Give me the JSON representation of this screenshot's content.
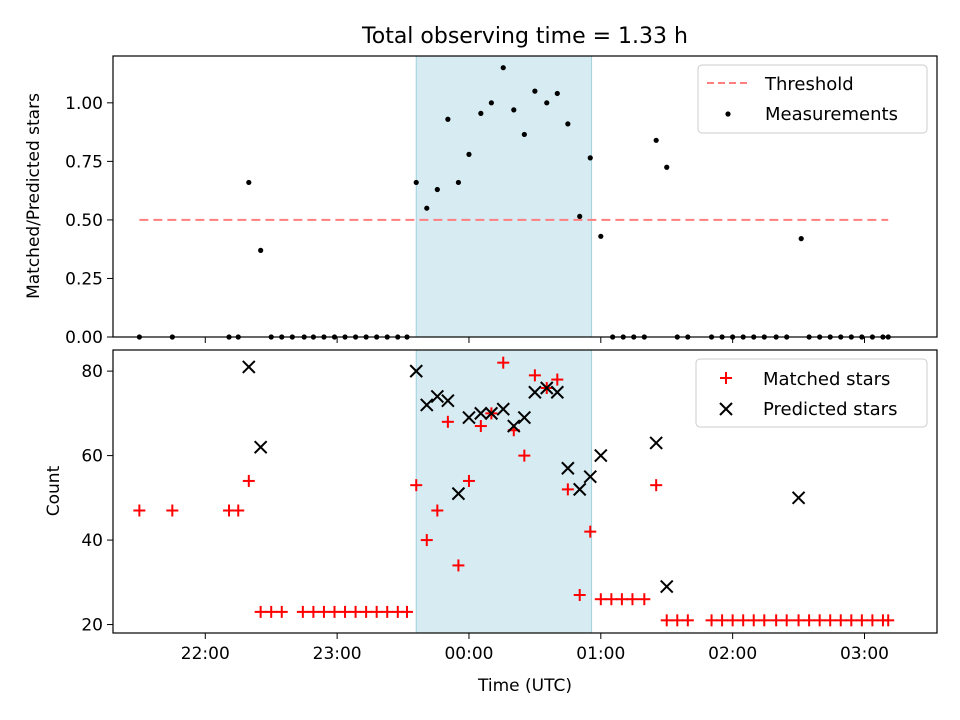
{
  "title": "Total observing time = 1.33 h",
  "chart_data": [
    {
      "type": "scatter",
      "panel": "top",
      "ylabel": "Matched/Predicted stars",
      "xlabel": "",
      "xlim": [
        21.3,
        27.55
      ],
      "ylim": [
        0,
        1.2
      ],
      "yticks": [
        0.0,
        0.25,
        0.5,
        0.75,
        1.0
      ],
      "ytick_labels": [
        "0.00",
        "0.25",
        "0.50",
        "0.75",
        "1.00"
      ],
      "highlight_span": [
        23.6,
        24.93
      ],
      "highlight_color": "#add8e6",
      "legend_position": "upper-right",
      "threshold": {
        "name": "Threshold",
        "value": 0.5,
        "x_range": [
          21.5,
          27.18
        ],
        "color": "#ff7f7f",
        "style": "dashed"
      },
      "series": [
        {
          "name": "Measurements",
          "color": "#000000",
          "marker": "dot",
          "x": [
            21.5,
            21.75,
            22.18,
            22.25,
            22.33,
            22.42,
            22.5,
            22.58,
            22.66,
            22.75,
            22.82,
            22.9,
            22.98,
            23.06,
            23.14,
            23.22,
            23.3,
            23.38,
            23.46,
            23.53,
            23.6,
            23.68,
            23.76,
            23.84,
            23.92,
            24.0,
            24.09,
            24.17,
            24.26,
            24.34,
            24.42,
            24.5,
            24.59,
            24.67,
            24.75,
            24.84,
            24.92,
            25.0,
            25.09,
            25.17,
            25.25,
            25.33,
            25.42,
            25.5,
            25.58,
            25.66,
            25.84,
            25.92,
            26.0,
            26.08,
            26.16,
            26.24,
            26.33,
            26.41,
            26.52,
            26.58,
            26.66,
            26.74,
            26.82,
            26.9,
            26.98,
            27.06,
            27.14,
            27.18
          ],
          "y": [
            0,
            0,
            0,
            0,
            0.66,
            0.37,
            0,
            0,
            0,
            0,
            0,
            0,
            0,
            0,
            0,
            0,
            0,
            0,
            0,
            0,
            0.66,
            0.55,
            0.63,
            0.93,
            0.66,
            0.78,
            0.955,
            1.0,
            1.15,
            0.97,
            0.865,
            1.05,
            1.0,
            1.04,
            0.91,
            0.515,
            0.765,
            0.43,
            0,
            0,
            0,
            0,
            0.84,
            0.725,
            0,
            0,
            0,
            0,
            0,
            0,
            0,
            0,
            0,
            0,
            0.42,
            0,
            0,
            0,
            0,
            0,
            0,
            0,
            0,
            0
          ]
        }
      ]
    },
    {
      "type": "scatter",
      "panel": "bottom",
      "xlabel": "Time (UTC)",
      "ylabel": "Count",
      "xlim": [
        21.3,
        27.55
      ],
      "ylim": [
        18,
        85
      ],
      "yticks": [
        20,
        40,
        60,
        80
      ],
      "ytick_labels": [
        "20",
        "40",
        "60",
        "80"
      ],
      "xticks": [
        22,
        23,
        24,
        25,
        26,
        27
      ],
      "xtick_labels": [
        "22:00",
        "23:00",
        "00:00",
        "01:00",
        "02:00",
        "03:00"
      ],
      "highlight_span": [
        23.6,
        24.93
      ],
      "highlight_color": "#add8e6",
      "legend_position": "upper-right",
      "series": [
        {
          "name": "Matched stars",
          "color": "#ff0000",
          "marker": "plus",
          "x": [
            21.5,
            21.75,
            22.18,
            22.25,
            22.33,
            22.42,
            22.5,
            22.58,
            22.74,
            22.82,
            22.9,
            22.98,
            23.06,
            23.14,
            23.22,
            23.3,
            23.38,
            23.46,
            23.53,
            23.6,
            23.68,
            23.76,
            23.84,
            23.92,
            24.0,
            24.09,
            24.17,
            24.26,
            24.34,
            24.42,
            24.5,
            24.59,
            24.67,
            24.75,
            24.84,
            24.92,
            25.0,
            25.08,
            25.16,
            25.24,
            25.33,
            25.42,
            25.5,
            25.58,
            25.66,
            25.84,
            25.92,
            26.0,
            26.08,
            26.16,
            26.24,
            26.33,
            26.41,
            26.5,
            26.58,
            26.66,
            26.74,
            26.82,
            26.9,
            26.98,
            27.06,
            27.14,
            27.18
          ],
          "y": [
            47,
            47,
            47,
            47,
            54,
            23,
            23,
            23,
            23,
            23,
            23,
            23,
            23,
            23,
            23,
            23,
            23,
            23,
            23,
            53,
            40,
            47,
            68,
            34,
            54,
            67,
            70,
            82,
            66,
            60,
            79,
            76,
            78,
            52,
            27,
            42,
            26,
            26,
            26,
            26,
            26,
            53,
            21,
            21,
            21,
            21,
            21,
            21,
            21,
            21,
            21,
            21,
            21,
            21,
            21,
            21,
            21,
            21,
            21,
            21,
            21,
            21,
            21
          ]
        },
        {
          "name": "Predicted stars",
          "color": "#000000",
          "marker": "x",
          "x": [
            22.33,
            22.42,
            23.6,
            23.68,
            23.76,
            23.84,
            23.92,
            24.0,
            24.09,
            24.17,
            24.26,
            24.34,
            24.42,
            24.5,
            24.59,
            24.67,
            24.75,
            24.84,
            24.92,
            25.0,
            25.42,
            25.5,
            26.5
          ],
          "y": [
            81,
            62,
            80,
            72,
            74,
            73,
            51,
            69,
            70,
            70,
            71,
            67,
            69,
            75,
            76,
            75,
            57,
            52,
            55,
            60,
            63,
            29,
            50
          ]
        }
      ]
    }
  ]
}
